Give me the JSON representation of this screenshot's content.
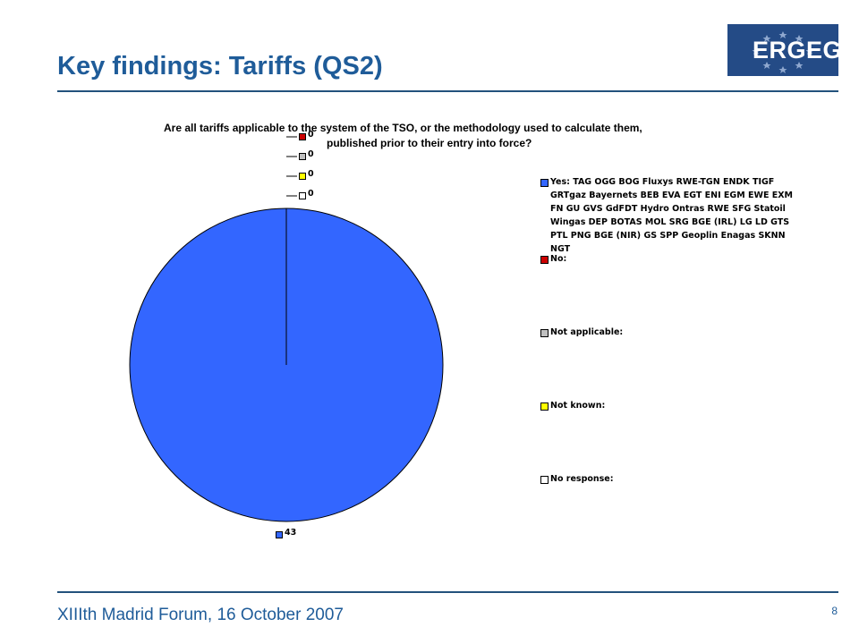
{
  "slide": {
    "title": "Key findings: Tariffs (QS2)",
    "logo_text": "ERGEG",
    "footer": "XIIIth Madrid Forum, 16 October 2007",
    "page_number": "8"
  },
  "colors": {
    "brand_blue": "#1f5c99",
    "rule": "#23527c",
    "yes": "#3366ff",
    "no": "#cc0000",
    "not_applicable": "#c0c0c0",
    "not_known": "#ffff00",
    "no_response": "#ffffff"
  },
  "chart_data": {
    "type": "pie",
    "title_line1": "Are all tariffs applicable to the system of the TSO, or the methodology used to calculate them,",
    "title_line2": "published prior to their entry into force?",
    "slices": [
      {
        "name": "Yes: TAG OGG BOG Fluxys RWE-TGN ENDK TIGF GRTgaz Bayernets BEB EVA EGT ENI EGM EWE EXM FN GU GVS GdFDT Hydro Ontras RWE SFG Statoil Wingas DEP BOTAS MOL SRG BGE (IRL) LG LD GTS PTL PNG BGE (NIR) GS SPP Geoplin Enagas SKNN NGT",
        "value": 43,
        "label": "43",
        "color": "#3366ff"
      },
      {
        "name": "No:",
        "value": 0,
        "label": "0",
        "color": "#cc0000"
      },
      {
        "name": "Not applicable:",
        "value": 0,
        "label": "0",
        "color": "#c0c0c0"
      },
      {
        "name": "Not known:",
        "value": 0,
        "label": "0",
        "color": "#ffff00"
      },
      {
        "name": "No response:",
        "value": 0,
        "label": "0",
        "color": "#ffffff"
      }
    ],
    "legend_position": "right"
  }
}
